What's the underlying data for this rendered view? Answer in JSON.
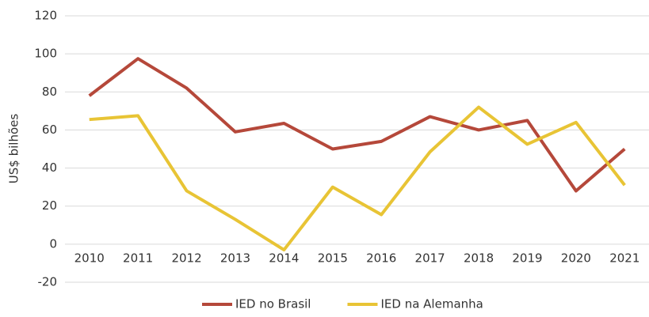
{
  "chart_data": {
    "type": "line",
    "y_label": "US$ bilhões",
    "categories": [
      "2010",
      "2011",
      "2012",
      "2013",
      "2014",
      "2015",
      "2016",
      "2017",
      "2018",
      "2019",
      "2020",
      "2021"
    ],
    "series": [
      {
        "name": "IED no Brasil",
        "color": "#b5483a",
        "values": [
          78,
          97.5,
          82,
          59,
          63.5,
          50,
          54,
          67,
          60,
          65,
          28,
          50
        ]
      },
      {
        "name": "IED na Alemanha",
        "color": "#e8c435",
        "values": [
          65.5,
          67.5,
          28,
          13,
          -3,
          30,
          15.5,
          48.5,
          72,
          52.5,
          64,
          31
        ]
      }
    ],
    "ylim": [
      -20,
      120
    ],
    "yticks": [
      -20,
      0,
      20,
      40,
      60,
      80,
      100,
      120
    ],
    "grid": true,
    "legend": "bottom"
  }
}
